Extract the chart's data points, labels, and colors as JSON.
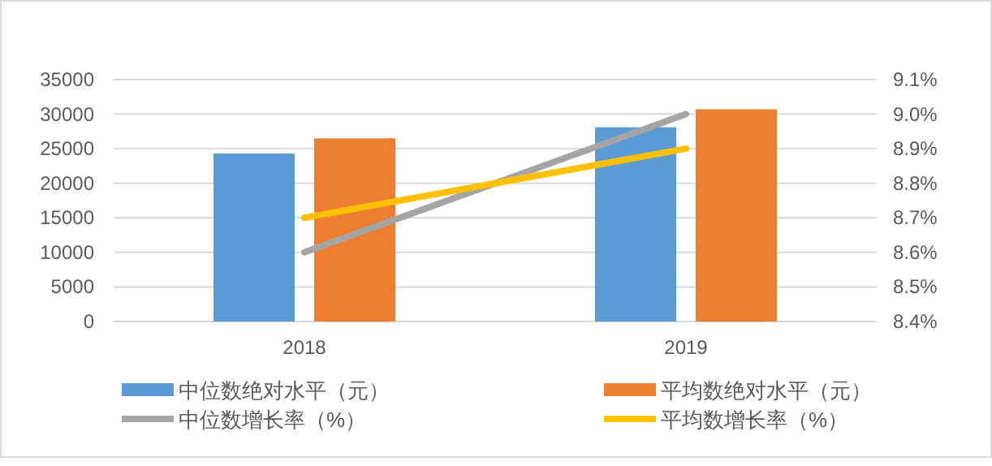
{
  "chart_data": {
    "type": "bar",
    "categories": [
      "2018",
      "2019"
    ],
    "series": [
      {
        "name": "中位数绝对水平（元）",
        "color": "#5b9bd5",
        "values": [
          24300,
          28100
        ]
      },
      {
        "name": "平均数绝对水平（元）",
        "color": "#ed7d31",
        "values": [
          26500,
          30700
        ]
      },
      {
        "name": "中位数增长率（%）",
        "color": "#a5a5a5",
        "type": "line",
        "axis": "y2",
        "values": [
          8.6,
          9.0
        ]
      },
      {
        "name": "平均数增长率（%）",
        "color": "#ffc000",
        "type": "line",
        "axis": "y2",
        "values": [
          8.7,
          8.9
        ]
      }
    ],
    "ylim": [
      0,
      35000
    ],
    "yticks": [
      0,
      5000,
      10000,
      15000,
      20000,
      25000,
      30000,
      35000
    ],
    "y2lim": [
      8.4,
      9.1
    ],
    "y2ticks": [
      {
        "value": 8.4,
        "label": "8.4%"
      },
      {
        "value": 8.5,
        "label": "8.5%"
      },
      {
        "value": 8.6,
        "label": "8.6%"
      },
      {
        "value": 8.7,
        "label": "8.7%"
      },
      {
        "value": 8.8,
        "label": "8.8%"
      },
      {
        "value": 8.9,
        "label": "8.9%"
      },
      {
        "value": 9.0,
        "label": "9.0%"
      },
      {
        "value": 9.1,
        "label": "9.1%"
      }
    ],
    "grid": "y",
    "legend": "bottom"
  }
}
